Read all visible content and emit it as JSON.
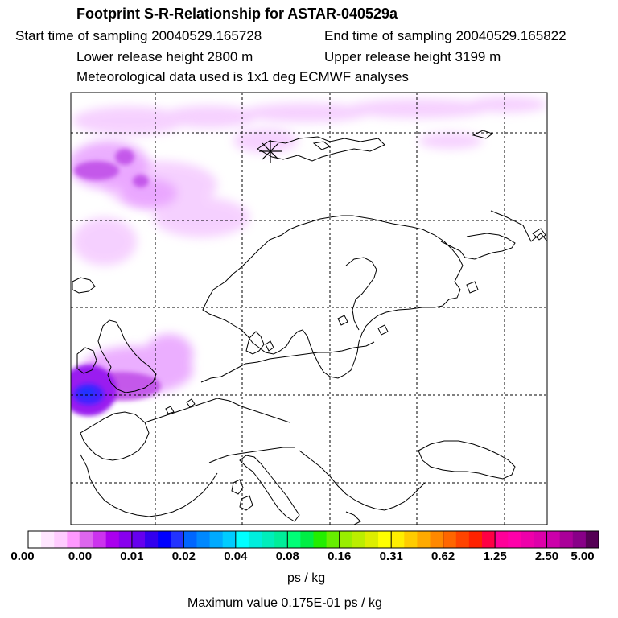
{
  "header": {
    "title": "Footprint S-R-Relationship for ASTAR-040529a",
    "start_time": "Start time of sampling 20040529.165728",
    "end_time": "End time of sampling 20040529.165822",
    "lower_height": "Lower release height 2800 m",
    "upper_height": "Upper release height 3199 m",
    "met_data": "Meteorological data used is 1x1 deg ECMWF analyses"
  },
  "map": {
    "release_marker": "asterisk-marker",
    "coastline_color": "#000000",
    "grid_style": "dashed"
  },
  "colorbar": {
    "colors": [
      "#ffffff",
      "#ffe6ff",
      "#ffccff",
      "#ff99ff",
      "#dd66ee",
      "#cc33ee",
      "#aa00ee",
      "#8800ee",
      "#6600ee",
      "#3300ee",
      "#0000ff",
      "#2233ff",
      "#0066ff",
      "#0088ff",
      "#00aaff",
      "#00ccff",
      "#00ffff",
      "#00eedd",
      "#00eebb",
      "#00ee99",
      "#00ff77",
      "#00ee44",
      "#22ee00",
      "#66ee00",
      "#99ee00",
      "#bbee00",
      "#ddee00",
      "#ffff00",
      "#ffee00",
      "#ffcc00",
      "#ffaa00",
      "#ff8800",
      "#ff6600",
      "#ff4400",
      "#ff2200",
      "#ff0044",
      "#ff0099",
      "#ff00aa",
      "#ee00aa",
      "#dd00aa",
      "#cc00aa",
      "#aa0099",
      "#880088",
      "#550055"
    ],
    "tick_labels": [
      "0.00",
      "0.00",
      "0.01",
      "0.02",
      "0.04",
      "0.08",
      "0.16",
      "0.31",
      "0.62",
      "1.25",
      "2.50",
      "5.00"
    ],
    "units": "ps / kg",
    "max_value": "Maximum value  0.175E-01 ps / kg"
  }
}
